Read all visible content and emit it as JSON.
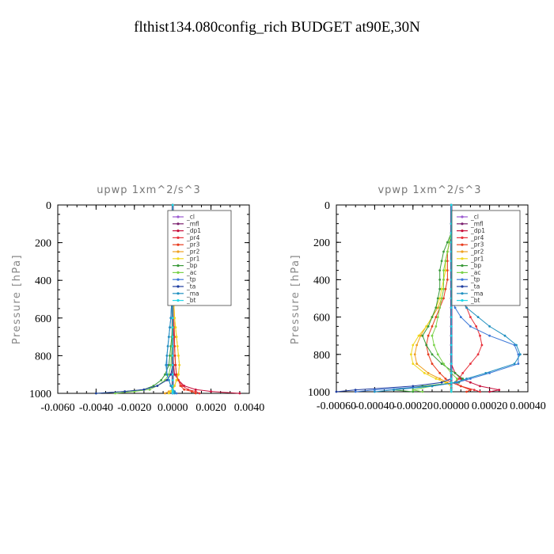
{
  "page_title": "flthist134.080config_rich  BUDGET at90E,30N",
  "chart_data": [
    {
      "type": "line",
      "title": "upwp   1xm^2/s^3",
      "ylabel": "Pressure [hPa]",
      "xlabel": "",
      "xlim": [
        -0.006,
        0.004
      ],
      "ylim": [
        1000,
        0
      ],
      "xticks": [
        "-0.0060",
        "-0.0040",
        "-0.0020",
        "0.0000",
        "0.0020",
        "0.0040"
      ],
      "xtick_values": [
        -0.006,
        -0.004,
        -0.002,
        0.0,
        0.002,
        0.004
      ],
      "yticks": [
        "0",
        "200",
        "400",
        "600",
        "800",
        "1000"
      ],
      "ytick_values": [
        0,
        200,
        400,
        600,
        800,
        1000
      ],
      "legend_position": "top-right",
      "pressure": [
        0,
        100,
        200,
        300,
        400,
        500,
        600,
        650,
        700,
        750,
        800,
        850,
        900,
        930,
        960,
        980,
        990,
        1000
      ],
      "series": [
        {
          "name": "_cl",
          "color": "#9b59d0",
          "values": [
            0,
            0,
            0,
            0,
            0,
            0,
            0,
            0,
            0,
            0,
            0,
            0,
            0,
            0,
            0,
            0,
            0,
            0
          ]
        },
        {
          "name": "_mfl",
          "color": "#7a1f6e",
          "values": [
            0,
            0,
            0,
            0,
            0,
            0,
            0,
            0,
            0,
            0,
            0,
            0,
            0,
            0,
            0,
            0,
            0,
            0
          ]
        },
        {
          "name": "_dp1",
          "color": "#c8103c",
          "values": [
            0,
            0,
            0,
            0,
            0,
            0,
            0,
            0,
            0,
            0,
            2e-05,
            5e-05,
            0.0001,
            0.0003,
            0.0006,
            0.0012,
            0.002,
            0.0035
          ]
        },
        {
          "name": "_pr4",
          "color": "#e8323c",
          "values": [
            0,
            0,
            0,
            0,
            0,
            0,
            5e-05,
            8e-05,
            0.0001,
            0.0001,
            0.00012,
            0.00015,
            0.0002,
            0.0003,
            0.0005,
            0.0008,
            0.0012,
            0.0014
          ]
        },
        {
          "name": "_pr3",
          "color": "#e83c1e",
          "values": [
            0,
            0,
            0,
            0,
            0,
            0,
            0,
            5e-05,
            8e-05,
            0.0001,
            0.00012,
            0.00015,
            0.0002,
            0.0003,
            0.0004,
            0.0006,
            0.001,
            0.0012
          ]
        },
        {
          "name": "_pr2",
          "color": "#f0a020",
          "values": [
            0,
            0,
            0,
            0,
            0,
            5e-05,
            0.0001,
            0.00015,
            0.0002,
            0.00025,
            0.0003,
            0.00035,
            0.0003,
            0.0002,
            0.0001,
            0,
            -0.0002,
            -0.0004
          ]
        },
        {
          "name": "_pr1",
          "color": "#f0d81e",
          "values": [
            0,
            0,
            0,
            0,
            0,
            5e-05,
            0.0001,
            0.00015,
            0.0002,
            0.00025,
            0.0003,
            0.00035,
            0.0003,
            0.0002,
            0.0001,
            0,
            -0.0001,
            -0.0002
          ]
        },
        {
          "name": "_bp",
          "color": "#3a9a3a",
          "values": [
            0,
            0,
            0,
            0,
            0,
            0,
            0,
            -2e-05,
            -5e-05,
            -0.0001,
            -0.00015,
            -0.0002,
            -0.0004,
            -0.0006,
            -0.001,
            -0.0015,
            -0.0025,
            -0.004
          ]
        },
        {
          "name": "_ac",
          "color": "#7ad24a",
          "values": [
            0,
            0,
            0,
            0,
            0,
            0,
            0,
            0,
            -2e-05,
            -4e-05,
            -6e-05,
            -0.0001,
            -0.0002,
            -0.0004,
            -0.0008,
            -0.0012,
            -0.002,
            -0.003
          ]
        },
        {
          "name": "_tp",
          "color": "#3c78d8",
          "values": [
            0,
            0,
            0,
            0,
            0,
            -5e-05,
            -0.0001,
            -0.00015,
            -0.0002,
            -0.00025,
            -0.0003,
            -0.0003,
            -0.0003,
            -0.0002,
            -0.0001,
            0,
            0.0001,
            0.0002
          ]
        },
        {
          "name": "_ta",
          "color": "#1e3ca0",
          "values": [
            0,
            0,
            0,
            0,
            0,
            0,
            0,
            0,
            0,
            0,
            0,
            0,
            -0.0001,
            -0.0003,
            -0.0008,
            -0.0015,
            -0.0025,
            -0.004
          ]
        },
        {
          "name": "_ma",
          "color": "#2090c0",
          "values": [
            0,
            0,
            0,
            0,
            0,
            -5e-05,
            -0.0001,
            -0.00015,
            -0.0002,
            -0.00025,
            -0.0003,
            -0.00035,
            -0.0003,
            -0.0002,
            -0.0001,
            0,
            0.0001,
            0.0001
          ]
        },
        {
          "name": "_bt",
          "color": "#20d8e8",
          "values": [
            0,
            0,
            0,
            0,
            0,
            0,
            0,
            0,
            0,
            0,
            0,
            0,
            0,
            0,
            0,
            0,
            0,
            0
          ]
        }
      ]
    },
    {
      "type": "line",
      "title": "vpwp   1xm^2/s^3",
      "ylabel": "Pressure [hPa]",
      "xlabel": "",
      "xlim": [
        -0.0006,
        0.0004
      ],
      "ylim": [
        1000,
        0
      ],
      "xticks": [
        "-0.00060",
        "-0.00040",
        "-0.00020",
        "0.00000",
        "0.00020",
        "0.00040"
      ],
      "xtick_values": [
        -0.0006,
        -0.0004,
        -0.0002,
        0.0,
        0.0002,
        0.0004
      ],
      "yticks": [
        "0",
        "200",
        "400",
        "600",
        "800",
        "1000"
      ],
      "ytick_values": [
        0,
        200,
        400,
        600,
        800,
        1000
      ],
      "legend_position": "top-right",
      "pressure": [
        0,
        100,
        150,
        200,
        250,
        300,
        350,
        400,
        450,
        500,
        550,
        600,
        650,
        700,
        750,
        800,
        850,
        900,
        930,
        950,
        970,
        990,
        1000
      ],
      "series": [
        {
          "name": "_cl",
          "color": "#9b59d0",
          "values": [
            0,
            0,
            0,
            0,
            0,
            0,
            0,
            0,
            0,
            0,
            0,
            0,
            0,
            0,
            0,
            0,
            0,
            0,
            0,
            0,
            0,
            0,
            0
          ]
        },
        {
          "name": "_mfl",
          "color": "#7a1f6e",
          "values": [
            0,
            0,
            0,
            0,
            0,
            0,
            0,
            0,
            0,
            0,
            0,
            0,
            0,
            0,
            0,
            0,
            0,
            0,
            0,
            0,
            0,
            0,
            0
          ]
        },
        {
          "name": "_dp1",
          "color": "#c8103c",
          "values": [
            0,
            0,
            0,
            0,
            0,
            0,
            0,
            0,
            0,
            0,
            0,
            0,
            0,
            0,
            0,
            0,
            0,
            2e-05,
            5e-05,
            0.0001,
            0.00015,
            0.00025,
            0.0002
          ]
        },
        {
          "name": "_pr4",
          "color": "#e8323c",
          "values": [
            0,
            0,
            0,
            1e-05,
            2e-05,
            2e-05,
            3e-05,
            4e-05,
            5e-05,
            6e-05,
            8e-05,
            0.0001,
            0.00013,
            0.00015,
            0.00016,
            0.00014,
            0.0001,
            6e-05,
            4e-05,
            2e-05,
            5e-05,
            0.00012,
            0.00015
          ]
        },
        {
          "name": "_pr3",
          "color": "#e83c1e",
          "values": [
            0,
            0,
            0,
            -1e-05,
            -2e-05,
            -2e-05,
            -2e-05,
            -2e-05,
            -3e-05,
            -4e-05,
            -6e-05,
            -8e-05,
            -0.0001,
            -0.00012,
            -0.00013,
            -0.00012,
            -0.0001,
            -6e-05,
            -3e-05,
            0,
            5e-05,
            0.0001,
            8e-05
          ]
        },
        {
          "name": "_pr2",
          "color": "#f0a020",
          "values": [
            0,
            0,
            0,
            -1e-05,
            -2e-05,
            -3e-05,
            -3e-05,
            -4e-05,
            -4e-05,
            -5e-05,
            -7e-05,
            -0.0001,
            -0.00013,
            -0.00016,
            -0.00018,
            -0.00019,
            -0.00018,
            -0.00012,
            -6e-05,
            -2e-05,
            0,
            0,
            0
          ]
        },
        {
          "name": "_pr1",
          "color": "#f0d81e",
          "values": [
            0,
            0,
            0,
            -1e-05,
            -2e-05,
            -3e-05,
            -3e-05,
            -4e-05,
            -5e-05,
            -6e-05,
            -8e-05,
            -0.0001,
            -0.00013,
            -0.00017,
            -0.0002,
            -0.00021,
            -0.0002,
            -0.00014,
            -8e-05,
            -3e-05,
            0,
            0,
            0
          ]
        },
        {
          "name": "_bp",
          "color": "#3a9a3a",
          "values": [
            0,
            0,
            0,
            -2e-05,
            -4e-05,
            -5e-05,
            -6e-05,
            -6e-05,
            -6e-05,
            -7e-05,
            -8e-05,
            -0.0001,
            -0.00012,
            -0.00015,
            -0.00013,
            -0.0001,
            -5e-05,
            2e-05,
            6e-05,
            4e-05,
            -0.00015,
            -0.0003,
            -0.0002
          ]
        },
        {
          "name": "_ac",
          "color": "#7ad24a",
          "values": [
            0,
            0,
            0,
            -1e-05,
            -2e-05,
            -3e-05,
            -4e-05,
            -4e-05,
            -4e-05,
            -5e-05,
            -6e-05,
            -7e-05,
            -8e-05,
            -0.0001,
            -9e-05,
            -7e-05,
            -4e-05,
            0,
            3e-05,
            2e-05,
            -0.0001,
            -0.0002,
            -0.00015
          ]
        },
        {
          "name": "_tp",
          "color": "#3c78d8",
          "values": [
            0,
            0,
            0,
            0,
            0,
            0,
            0,
            0,
            0,
            0,
            2e-05,
            5e-05,
            0.0001,
            0.0002,
            0.00033,
            0.00035,
            0.00035,
            0.0002,
            0.0001,
            3e-05,
            -0.0001,
            -0.0004,
            -0.0005
          ]
        },
        {
          "name": "_ta",
          "color": "#1e3ca0",
          "values": [
            0,
            0,
            0,
            0,
            0,
            0,
            0,
            0,
            0,
            0,
            0,
            0,
            0,
            0,
            0,
            0,
            0,
            0,
            0,
            -5e-05,
            -0.0002,
            -0.0005,
            -0.0006
          ]
        },
        {
          "name": "_ma",
          "color": "#2090c0",
          "values": [
            0,
            0,
            0,
            0,
            0,
            0,
            0,
            1e-05,
            2e-05,
            4e-05,
            8e-05,
            0.00014,
            0.0002,
            0.00028,
            0.00034,
            0.00036,
            0.00033,
            0.00018,
            8e-05,
            2e-05,
            -0.0001,
            -0.0003,
            -0.0004
          ]
        },
        {
          "name": "_bt",
          "color": "#20d8e8",
          "values": [
            0,
            0,
            0,
            0,
            0,
            0,
            0,
            0,
            0,
            0,
            0,
            0,
            0,
            0,
            0,
            0,
            0,
            0,
            0,
            0,
            0,
            0,
            0
          ]
        }
      ]
    }
  ]
}
